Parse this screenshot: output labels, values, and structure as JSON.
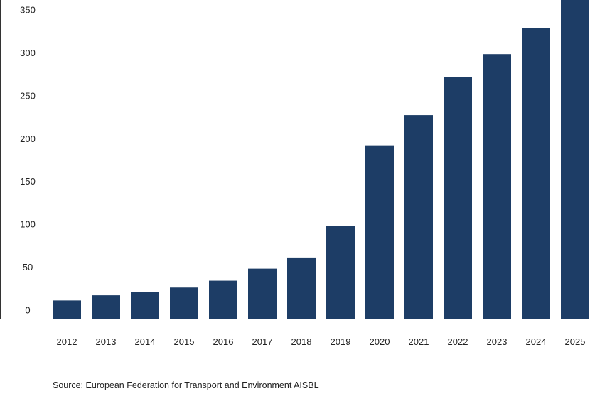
{
  "chart_data": {
    "type": "bar",
    "categories": [
      "2012",
      "2013",
      "2014",
      "2015",
      "2016",
      "2017",
      "2018",
      "2019",
      "2020",
      "2021",
      "2022",
      "2023",
      "2024",
      "2025"
    ],
    "values": [
      11,
      17,
      21,
      26,
      34,
      48,
      61,
      98,
      191,
      227,
      271,
      298,
      328,
      368
    ],
    "yticks": [
      0,
      50,
      100,
      150,
      200,
      250,
      300,
      350
    ],
    "ylim": [
      -11,
      361
    ],
    "title": "",
    "xlabel": "",
    "ylabel": "",
    "grid": false,
    "bar_color": "#1d3d66"
  },
  "source": "Source: European Federation for Transport and Environment AISBL"
}
